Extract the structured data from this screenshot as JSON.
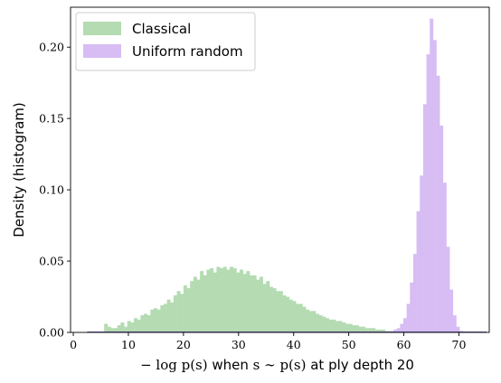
{
  "chart_data": {
    "type": "histogram",
    "xlabel": "−log p(s) when s ∼ p(s) at ply depth 20",
    "xlabel_parts": {
      "math_prefix": "− log p(s)",
      "word_when": " when ",
      "math_mid": "s ∼ p(s)",
      "word_tail": " at ply depth 20"
    },
    "ylabel": "Density (histogram)",
    "xlim": [
      -0.5,
      75.5
    ],
    "ylim": [
      0,
      0.228
    ],
    "xticks": [
      0,
      10,
      20,
      30,
      40,
      50,
      60,
      70
    ],
    "xtick_labels": [
      "0",
      "10",
      "20",
      "30",
      "40",
      "50",
      "60",
      "70"
    ],
    "yticks": [
      0.0,
      0.05,
      0.1,
      0.15,
      0.2
    ],
    "ytick_labels": [
      "0.00",
      "0.05",
      "0.10",
      "0.15",
      "0.20"
    ],
    "grid": false,
    "legend_position": "top-left",
    "series": [
      {
        "name": "Classical",
        "color": "#b4dbb2",
        "bins": [
          [
            5.6,
            0.006
          ],
          [
            6.2,
            0.004
          ],
          [
            6.8,
            0.003
          ],
          [
            7.4,
            0.003
          ],
          [
            8.0,
            0.005
          ],
          [
            8.6,
            0.007
          ],
          [
            9.2,
            0.004
          ],
          [
            9.8,
            0.008
          ],
          [
            10.4,
            0.007
          ],
          [
            11.0,
            0.01
          ],
          [
            11.6,
            0.009
          ],
          [
            12.2,
            0.012
          ],
          [
            12.8,
            0.013
          ],
          [
            13.4,
            0.012
          ],
          [
            14.0,
            0.016
          ],
          [
            14.6,
            0.017
          ],
          [
            15.2,
            0.016
          ],
          [
            15.8,
            0.019
          ],
          [
            16.4,
            0.02
          ],
          [
            17.0,
            0.023
          ],
          [
            17.6,
            0.021
          ],
          [
            18.2,
            0.026
          ],
          [
            18.8,
            0.029
          ],
          [
            19.4,
            0.027
          ],
          [
            20.0,
            0.033
          ],
          [
            20.6,
            0.031
          ],
          [
            21.2,
            0.036
          ],
          [
            21.8,
            0.039
          ],
          [
            22.4,
            0.037
          ],
          [
            23.0,
            0.043
          ],
          [
            23.6,
            0.04
          ],
          [
            24.2,
            0.044
          ],
          [
            24.8,
            0.045
          ],
          [
            25.4,
            0.042
          ],
          [
            26.0,
            0.046
          ],
          [
            26.6,
            0.045
          ],
          [
            27.2,
            0.046
          ],
          [
            27.8,
            0.044
          ],
          [
            28.4,
            0.046
          ],
          [
            29.0,
            0.045
          ],
          [
            29.6,
            0.042
          ],
          [
            30.2,
            0.044
          ],
          [
            30.8,
            0.041
          ],
          [
            31.4,
            0.043
          ],
          [
            32.0,
            0.04
          ],
          [
            32.6,
            0.04
          ],
          [
            33.2,
            0.037
          ],
          [
            33.8,
            0.039
          ],
          [
            34.4,
            0.034
          ],
          [
            35.0,
            0.036
          ],
          [
            35.6,
            0.032
          ],
          [
            36.2,
            0.031
          ],
          [
            36.8,
            0.029
          ],
          [
            37.4,
            0.029
          ],
          [
            38.0,
            0.026
          ],
          [
            38.6,
            0.025
          ],
          [
            39.2,
            0.023
          ],
          [
            39.8,
            0.022
          ],
          [
            40.4,
            0.02
          ],
          [
            41.0,
            0.02
          ],
          [
            41.6,
            0.018
          ],
          [
            42.2,
            0.016
          ],
          [
            42.8,
            0.015
          ],
          [
            43.4,
            0.015
          ],
          [
            44.0,
            0.013
          ],
          [
            44.6,
            0.012
          ],
          [
            45.2,
            0.011
          ],
          [
            45.8,
            0.01
          ],
          [
            46.4,
            0.009
          ],
          [
            47.0,
            0.009
          ],
          [
            47.6,
            0.008
          ],
          [
            48.2,
            0.008
          ],
          [
            48.8,
            0.007
          ],
          [
            49.4,
            0.006
          ],
          [
            50.0,
            0.006
          ],
          [
            50.6,
            0.005
          ],
          [
            51.2,
            0.005
          ],
          [
            51.8,
            0.004
          ],
          [
            52.4,
            0.004
          ],
          [
            53.0,
            0.003
          ],
          [
            53.6,
            0.003
          ],
          [
            54.2,
            0.003
          ],
          [
            54.8,
            0.002
          ],
          [
            55.4,
            0.002
          ],
          [
            56.0,
            0.002
          ],
          [
            56.6,
            0.001
          ],
          [
            57.2,
            0.001
          ]
        ]
      },
      {
        "name": "Uniform random",
        "color": "#d7bdf3",
        "bins": [
          [
            57.5,
            0.001
          ],
          [
            58.1,
            0.002
          ],
          [
            58.7,
            0.003
          ],
          [
            59.3,
            0.006
          ],
          [
            59.9,
            0.01
          ],
          [
            60.5,
            0.02
          ],
          [
            61.1,
            0.035
          ],
          [
            61.7,
            0.055
          ],
          [
            62.3,
            0.085
          ],
          [
            62.9,
            0.11
          ],
          [
            63.5,
            0.16
          ],
          [
            64.1,
            0.195
          ],
          [
            64.7,
            0.22
          ],
          [
            65.3,
            0.205
          ],
          [
            65.9,
            0.18
          ],
          [
            66.5,
            0.145
          ],
          [
            67.1,
            0.105
          ],
          [
            67.7,
            0.06
          ],
          [
            68.3,
            0.03
          ],
          [
            68.9,
            0.012
          ],
          [
            69.5,
            0.004
          ],
          [
            70.1,
            0.001
          ]
        ]
      }
    ],
    "baseline_line": {
      "color": "#6a5fb0",
      "x_range": [
        2.5,
        75
      ]
    }
  }
}
